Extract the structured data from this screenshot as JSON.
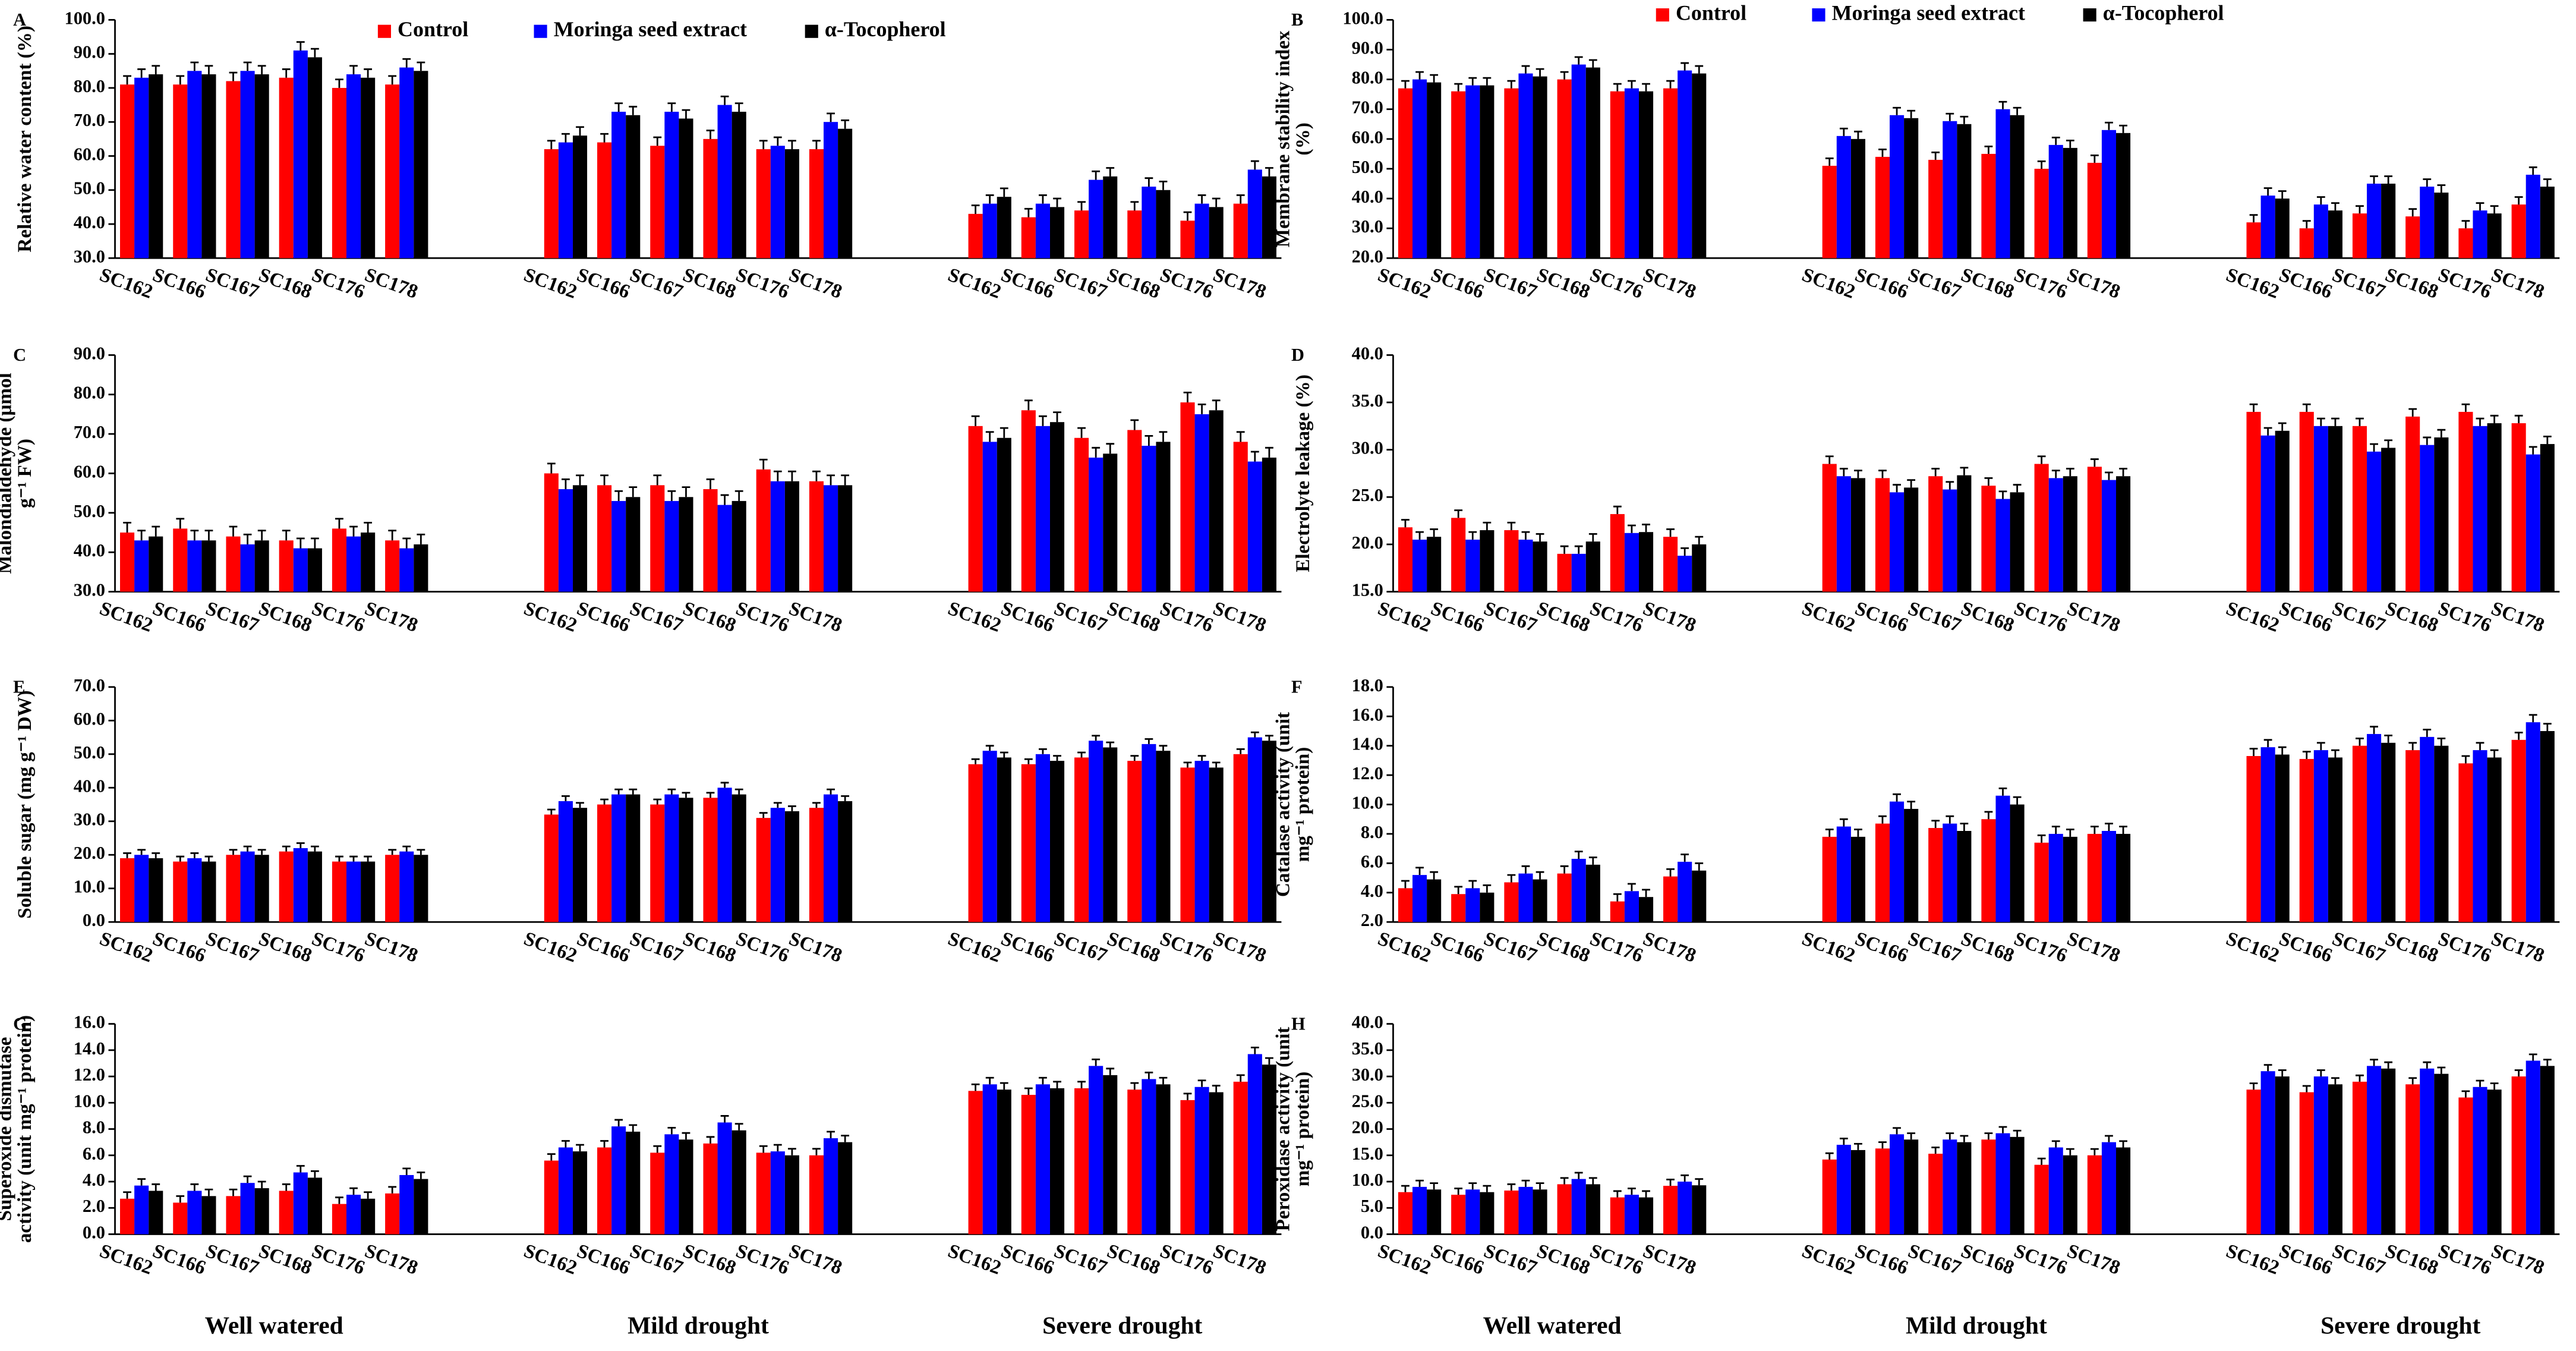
{
  "chart_data": [
    {
      "type": "bar",
      "label": "A",
      "ylabel": [
        "Relative water content (%)"
      ],
      "categories": [
        "SC162",
        "SC166",
        "SC167",
        "SC168",
        "SC176",
        "SC178",
        "SC162",
        "SC166",
        "SC167",
        "SC168",
        "SC176",
        "SC178",
        "SC162",
        "SC166",
        "SC167",
        "SC168",
        "SC176",
        "SC178"
      ],
      "series": [
        {
          "name": "Control",
          "color": "#ff0000",
          "error": 2.5,
          "values": [
            81,
            81,
            82,
            83,
            80,
            81,
            62,
            64,
            63,
            65,
            62,
            62,
            43,
            42,
            44,
            44,
            41,
            46
          ]
        },
        {
          "name": "Moringa seed extract",
          "color": "#0000ff",
          "error": 2.5,
          "values": [
            83,
            85,
            85,
            91,
            84,
            86,
            64,
            73,
            73,
            75,
            63,
            70,
            46,
            46,
            53,
            51,
            46,
            56
          ]
        },
        {
          "name": "α-Tocopherol",
          "color": "#000000",
          "error": 2.5,
          "values": [
            84,
            84,
            84,
            89,
            83,
            85,
            66,
            72,
            71,
            73,
            62,
            68,
            48,
            45,
            54,
            50,
            45,
            54
          ]
        }
      ],
      "ylim": [
        30,
        100
      ],
      "yticks": [
        {
          "value": 30,
          "label": "30.0"
        },
        {
          "value": 40,
          "label": "40.0"
        },
        {
          "value": 50,
          "label": "50.0"
        },
        {
          "value": 60,
          "label": "60.0"
        },
        {
          "value": 70,
          "label": "70.0"
        },
        {
          "value": 80,
          "label": "80.0"
        },
        {
          "value": 90,
          "label": "90.0"
        },
        {
          "value": 100,
          "label": "100.0"
        }
      ]
    },
    {
      "type": "bar",
      "label": "B",
      "ylabel": [
        "Membrane stability index",
        "(%)"
      ],
      "categories": [
        "SC162",
        "SC166",
        "SC167",
        "SC168",
        "SC176",
        "SC178",
        "SC162",
        "SC166",
        "SC167",
        "SC168",
        "SC176",
        "SC178",
        "SC162",
        "SC166",
        "SC167",
        "SC168",
        "SC176",
        "SC178"
      ],
      "series": [
        {
          "name": "Control",
          "color": "#ff0000",
          "error": 2.5,
          "values": [
            77,
            76,
            77,
            80,
            76,
            77,
            51,
            54,
            53,
            55,
            50,
            52,
            32,
            30,
            35,
            34,
            30,
            38
          ]
        },
        {
          "name": "Moringa seed extract",
          "color": "#0000ff",
          "error": 2.5,
          "values": [
            80,
            78,
            82,
            85,
            77,
            83,
            61,
            68,
            66,
            70,
            58,
            63,
            41,
            38,
            45,
            44,
            36,
            48
          ]
        },
        {
          "name": "α-Tocopherol",
          "color": "#000000",
          "error": 2.5,
          "values": [
            79,
            78,
            81,
            84,
            76,
            82,
            60,
            67,
            65,
            68,
            57,
            62,
            40,
            36,
            45,
            42,
            35,
            44
          ]
        }
      ],
      "ylim": [
        20,
        100
      ],
      "yticks": [
        {
          "value": 20,
          "label": "20.0"
        },
        {
          "value": 30,
          "label": "30.0"
        },
        {
          "value": 40,
          "label": "40.0"
        },
        {
          "value": 50,
          "label": "50.0"
        },
        {
          "value": 60,
          "label": "60.0"
        },
        {
          "value": 70,
          "label": "70.0"
        },
        {
          "value": 80,
          "label": "80.0"
        },
        {
          "value": 90,
          "label": "90.0"
        },
        {
          "value": 100,
          "label": "100.0"
        }
      ]
    },
    {
      "type": "bar",
      "label": "C",
      "ylabel": [
        "Malondialdehyde (μmol",
        "g⁻¹ FW)"
      ],
      "categories": [
        "SC162",
        "SC166",
        "SC167",
        "SC168",
        "SC176",
        "SC178",
        "SC162",
        "SC166",
        "SC167",
        "SC168",
        "SC176",
        "SC178",
        "SC162",
        "SC166",
        "SC167",
        "SC168",
        "SC176",
        "SC178"
      ],
      "series": [
        {
          "color": "#ff0000",
          "error": 2.5,
          "values": [
            45,
            46,
            44,
            43,
            46,
            43,
            60,
            57,
            57,
            56,
            61,
            58,
            72,
            76,
            69,
            71,
            78,
            68
          ]
        },
        {
          "color": "#0000ff",
          "error": 2.5,
          "values": [
            43,
            43,
            42,
            41,
            44,
            41,
            56,
            53,
            53,
            52,
            58,
            57,
            68,
            72,
            64,
            67,
            75,
            63
          ]
        },
        {
          "color": "#000000",
          "error": 2.5,
          "values": [
            44,
            43,
            43,
            41,
            45,
            42,
            57,
            54,
            54,
            53,
            58,
            57,
            69,
            73,
            65,
            68,
            76,
            64
          ]
        }
      ],
      "ylim": [
        30,
        90
      ],
      "yticks": [
        {
          "value": 30,
          "label": "30.0"
        },
        {
          "value": 40,
          "label": "40.0"
        },
        {
          "value": 50,
          "label": "50.0"
        },
        {
          "value": 60,
          "label": "60.0"
        },
        {
          "value": 70,
          "label": "70.0"
        },
        {
          "value": 80,
          "label": "80.0"
        },
        {
          "value": 90,
          "label": "90.0"
        }
      ]
    },
    {
      "type": "bar",
      "label": "D",
      "ylabel": [
        "Electrolyte leakage (%)"
      ],
      "categories": [
        "SC162",
        "SC166",
        "SC167",
        "SC168",
        "SC176",
        "SC178",
        "SC162",
        "SC166",
        "SC167",
        "SC168",
        "SC176",
        "SC178",
        "SC162",
        "SC166",
        "SC167",
        "SC168",
        "SC176",
        "SC178"
      ],
      "series": [
        {
          "color": "#ff0000",
          "error": 0.8,
          "values": [
            21.8,
            22.8,
            21.5,
            19,
            23.2,
            20.8,
            28.5,
            27,
            27.2,
            26.2,
            28.5,
            28.2,
            34,
            34,
            32.5,
            33.5,
            34,
            32.8
          ]
        },
        {
          "color": "#0000ff",
          "error": 0.8,
          "values": [
            20.5,
            20.5,
            20.5,
            19,
            21.2,
            18.8,
            27.2,
            25.5,
            25.8,
            24.8,
            27,
            26.8,
            31.5,
            32.5,
            29.8,
            30.5,
            32.5,
            29.5
          ]
        },
        {
          "color": "#000000",
          "error": 0.8,
          "values": [
            20.8,
            21.5,
            20.3,
            20.3,
            21.3,
            20,
            27,
            26,
            27.3,
            25.5,
            27.2,
            27.2,
            32,
            32.5,
            30.2,
            31.3,
            32.8,
            30.6
          ]
        }
      ],
      "ylim": [
        15,
        40
      ],
      "yticks": [
        {
          "value": 15,
          "label": "15.0"
        },
        {
          "value": 20,
          "label": "20.0"
        },
        {
          "value": 25,
          "label": "25.0"
        },
        {
          "value": 30,
          "label": "30.0"
        },
        {
          "value": 35,
          "label": "35.0"
        },
        {
          "value": 40,
          "label": "40.0"
        }
      ]
    },
    {
      "type": "bar",
      "label": "E",
      "ylabel": [
        "Soluble sugar (mg g⁻¹ DW)"
      ],
      "categories": [
        "SC162",
        "SC166",
        "SC167",
        "SC168",
        "SC176",
        "SC178",
        "SC162",
        "SC166",
        "SC167",
        "SC168",
        "SC176",
        "SC178",
        "SC162",
        "SC166",
        "SC167",
        "SC168",
        "SC176",
        "SC178"
      ],
      "series": [
        {
          "color": "#ff0000",
          "error": 1.5,
          "values": [
            19,
            18,
            20,
            21,
            18,
            20,
            32,
            35,
            35,
            37,
            31,
            34,
            47,
            47,
            49,
            48,
            46,
            50
          ]
        },
        {
          "color": "#0000ff",
          "error": 1.5,
          "values": [
            20,
            19,
            21,
            22,
            18,
            21,
            36,
            38,
            38,
            40,
            34,
            38,
            51,
            50,
            54,
            53,
            48,
            55
          ]
        },
        {
          "color": "#000000",
          "error": 1.5,
          "values": [
            19,
            18,
            20,
            21,
            18,
            20,
            34,
            38,
            37,
            38,
            33,
            36,
            49,
            48,
            52,
            51,
            46,
            54
          ]
        }
      ],
      "ylim": [
        0,
        70
      ],
      "yticks": [
        {
          "value": 0,
          "label": "0.0"
        },
        {
          "value": 10,
          "label": "10.0"
        },
        {
          "value": 20,
          "label": "20.0"
        },
        {
          "value": 30,
          "label": "30.0"
        },
        {
          "value": 40,
          "label": "40.0"
        },
        {
          "value": 50,
          "label": "50.0"
        },
        {
          "value": 60,
          "label": "60.0"
        },
        {
          "value": 70,
          "label": "70.0"
        }
      ]
    },
    {
      "type": "bar",
      "label": "F",
      "ylabel": [
        "Catalase activity (unit",
        "mg⁻¹ protein)"
      ],
      "categories": [
        "SC162",
        "SC166",
        "SC167",
        "SC168",
        "SC176",
        "SC178",
        "SC162",
        "SC166",
        "SC167",
        "SC168",
        "SC176",
        "SC178",
        "SC162",
        "SC166",
        "SC167",
        "SC168",
        "SC176",
        "SC178"
      ],
      "series": [
        {
          "color": "#ff0000",
          "error": 0.5,
          "values": [
            4.3,
            3.9,
            4.7,
            5.3,
            3.4,
            5.1,
            7.8,
            8.7,
            8.4,
            9,
            7.4,
            8,
            13.3,
            13.1,
            14,
            13.7,
            12.8,
            14.4
          ]
        },
        {
          "color": "#0000ff",
          "error": 0.5,
          "values": [
            5.2,
            4.3,
            5.3,
            6.3,
            4.1,
            6.1,
            8.5,
            10.2,
            8.7,
            10.6,
            8,
            8.2,
            13.9,
            13.7,
            14.8,
            14.6,
            13.7,
            15.6
          ]
        },
        {
          "color": "#000000",
          "error": 0.5,
          "values": [
            4.9,
            4,
            4.9,
            5.9,
            3.7,
            5.5,
            7.8,
            9.7,
            8.2,
            10,
            7.8,
            8,
            13.4,
            13.2,
            14.2,
            14,
            13.2,
            15
          ]
        }
      ],
      "ylim": [
        2,
        18
      ],
      "yticks": [
        {
          "value": 2,
          "label": "2.0"
        },
        {
          "value": 4,
          "label": "4.0"
        },
        {
          "value": 6,
          "label": "6.0"
        },
        {
          "value": 8,
          "label": "8.0"
        },
        {
          "value": 10,
          "label": "10.0"
        },
        {
          "value": 12,
          "label": "12.0"
        },
        {
          "value": 14,
          "label": "14.0"
        },
        {
          "value": 16,
          "label": "16.0"
        },
        {
          "value": 18,
          "label": "18.0"
        }
      ]
    },
    {
      "type": "bar",
      "label": "G",
      "ylabel": [
        "Superoxide dismutase",
        "activity (unit mg⁻¹ protein)"
      ],
      "categories": [
        "SC162",
        "SC166",
        "SC167",
        "SC168",
        "SC176",
        "SC178",
        "SC162",
        "SC166",
        "SC167",
        "SC168",
        "SC176",
        "SC178",
        "SC162",
        "SC166",
        "SC167",
        "SC168",
        "SC176",
        "SC178"
      ],
      "groups": [
        "Well watered",
        "Mild drought",
        "Severe drought"
      ],
      "series": [
        {
          "color": "#ff0000",
          "error": 0.5,
          "values": [
            2.7,
            2.4,
            2.9,
            3.3,
            2.3,
            3.1,
            5.6,
            6.6,
            6.2,
            6.9,
            6.2,
            6,
            10.9,
            10.6,
            11.1,
            11,
            10.2,
            11.6
          ]
        },
        {
          "color": "#0000ff",
          "error": 0.5,
          "values": [
            3.7,
            3.3,
            3.9,
            4.7,
            3,
            4.5,
            6.6,
            8.2,
            7.6,
            8.5,
            6.3,
            7.3,
            11.4,
            11.4,
            12.8,
            11.8,
            11.2,
            13.7
          ]
        },
        {
          "color": "#000000",
          "error": 0.5,
          "values": [
            3.3,
            2.9,
            3.5,
            4.3,
            2.7,
            4.2,
            6.3,
            7.8,
            7.2,
            7.9,
            6,
            7,
            11,
            11.1,
            12.1,
            11.4,
            10.8,
            12.9
          ]
        }
      ],
      "ylim": [
        0,
        16
      ],
      "yticks": [
        {
          "value": 0,
          "label": "0.0"
        },
        {
          "value": 2,
          "label": "2.0"
        },
        {
          "value": 4,
          "label": "4.0"
        },
        {
          "value": 6,
          "label": "6.0"
        },
        {
          "value": 8,
          "label": "8.0"
        },
        {
          "value": 10,
          "label": "10.0"
        },
        {
          "value": 12,
          "label": "12.0"
        },
        {
          "value": 14,
          "label": "14.0"
        },
        {
          "value": 16,
          "label": "16.0"
        }
      ]
    },
    {
      "type": "bar",
      "label": "H",
      "ylabel": [
        "Peroxidase activity (unit",
        "mg⁻¹ protein)"
      ],
      "categories": [
        "SC162",
        "SC166",
        "SC167",
        "SC168",
        "SC176",
        "SC178",
        "SC162",
        "SC166",
        "SC167",
        "SC168",
        "SC176",
        "SC178",
        "SC162",
        "SC166",
        "SC167",
        "SC168",
        "SC176",
        "SC178"
      ],
      "groups": [
        "Well watered",
        "Mild drought",
        "Severe drought"
      ],
      "series": [
        {
          "color": "#ff0000",
          "error": 1.2,
          "values": [
            8,
            7.5,
            8.3,
            9.5,
            7,
            9.2,
            14.2,
            16.3,
            15.3,
            18,
            13.2,
            15,
            27.5,
            27,
            29,
            28.5,
            26,
            30
          ]
        },
        {
          "color": "#0000ff",
          "error": 1.2,
          "values": [
            9,
            8.5,
            9,
            10.5,
            7.5,
            10,
            17,
            19,
            18,
            19.2,
            16.5,
            17.5,
            31,
            30,
            32,
            31.5,
            28,
            33
          ]
        },
        {
          "color": "#000000",
          "error": 1.2,
          "values": [
            8.5,
            8,
            8.5,
            9.5,
            7,
            9.3,
            16,
            18,
            17.5,
            18.5,
            15,
            16.5,
            30,
            28.5,
            31.5,
            30.5,
            27.5,
            32
          ]
        }
      ],
      "ylim": [
        0,
        40
      ],
      "yticks": [
        {
          "value": 0,
          "label": "0.0"
        },
        {
          "value": 5,
          "label": "5.0"
        },
        {
          "value": 10,
          "label": "10.0"
        },
        {
          "value": 15,
          "label": "15.0"
        },
        {
          "value": 20,
          "label": "20.0"
        },
        {
          "value": 25,
          "label": "25.0"
        },
        {
          "value": 30,
          "label": "30.0"
        },
        {
          "value": 35,
          "label": "35.0"
        },
        {
          "value": 40,
          "label": "40.0"
        }
      ]
    }
  ]
}
